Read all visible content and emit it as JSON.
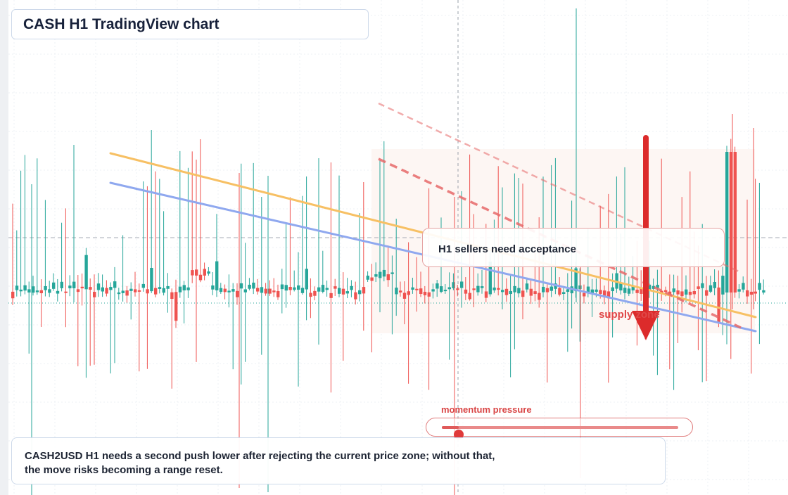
{
  "title": "CASH H1 TradingView chart",
  "callout": "H1 sellers need acceptance",
  "supply_label": "supply zone",
  "momentum": {
    "label": "momentum pressure",
    "level": 0.07
  },
  "caption_lines": [
    "CASH2USD H1 needs a second push lower after rejecting the current price zone; without that,",
    "the move risks becoming a range reset."
  ],
  "colors": {
    "up": "#26a69a",
    "down": "#ef5350",
    "trend_orange": "#f7c064",
    "trend_blue": "#8fa8ef",
    "dashed_trend": "#e76a6a",
    "arrow": "#dc2b2b",
    "zone": "#fdf6f3"
  },
  "chart_data": {
    "type": "candlestick",
    "symbol": "CASH2USD",
    "timeframe": "H1",
    "grid": true,
    "axis_labels": "none shown",
    "annotations": [
      "H1 sellers need acceptance",
      "supply zone",
      "momentum pressure",
      "downward arrow",
      "two descending trendlines",
      "two dashed descending lines"
    ]
  }
}
